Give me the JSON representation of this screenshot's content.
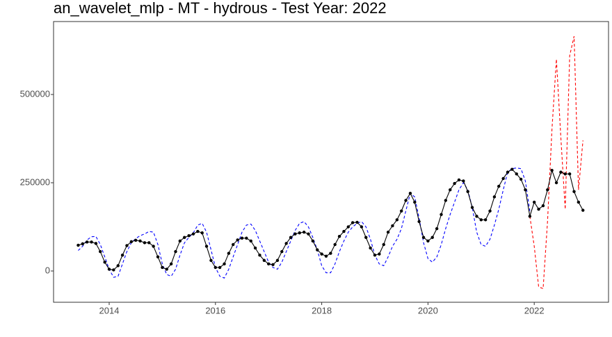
{
  "chart_data": {
    "type": "line",
    "title": "an_wavelet_mlp - MT - hydrous - Test Year: 2022",
    "x": [
      2013.417,
      2013.5,
      2013.583,
      2013.667,
      2013.75,
      2013.833,
      2013.917,
      2014,
      2014.083,
      2014.167,
      2014.25,
      2014.333,
      2014.417,
      2014.5,
      2014.583,
      2014.667,
      2014.75,
      2014.833,
      2014.917,
      2015,
      2015.083,
      2015.167,
      2015.25,
      2015.333,
      2015.417,
      2015.5,
      2015.583,
      2015.667,
      2015.75,
      2015.833,
      2015.917,
      2016,
      2016.083,
      2016.167,
      2016.25,
      2016.333,
      2016.417,
      2016.5,
      2016.583,
      2016.667,
      2016.75,
      2016.833,
      2016.917,
      2017,
      2017.083,
      2017.167,
      2017.25,
      2017.333,
      2017.417,
      2017.5,
      2017.583,
      2017.667,
      2017.75,
      2017.833,
      2017.917,
      2018,
      2018.083,
      2018.167,
      2018.25,
      2018.333,
      2018.417,
      2018.5,
      2018.583,
      2018.667,
      2018.75,
      2018.833,
      2018.917,
      2019,
      2019.083,
      2019.167,
      2019.25,
      2019.333,
      2019.417,
      2019.5,
      2019.583,
      2019.667,
      2019.75,
      2019.833,
      2019.917,
      2020,
      2020.083,
      2020.167,
      2020.25,
      2020.333,
      2020.417,
      2020.5,
      2020.583,
      2020.667,
      2020.75,
      2020.833,
      2020.917,
      2021,
      2021.083,
      2021.167,
      2021.25,
      2021.333,
      2021.417,
      2021.5,
      2021.583,
      2021.667,
      2021.75,
      2021.833,
      2021.917,
      2022,
      2022.083,
      2022.167,
      2022.25,
      2022.333,
      2022.417,
      2022.5,
      2022.583,
      2022.667,
      2022.75,
      2022.833,
      2022.917
    ],
    "series": [
      {
        "color": "#0000ff",
        "linestyle": "dashed",
        "markers": false,
        "values": [
          58000,
          70000,
          88000,
          97000,
          98000,
          75000,
          40000,
          5000,
          -18000,
          -15000,
          20000,
          55000,
          80000,
          92000,
          100000,
          105000,
          112000,
          110000,
          75000,
          20000,
          -10000,
          -15000,
          5000,
          45000,
          80000,
          95000,
          108000,
          130000,
          135000,
          110000,
          60000,
          10000,
          -15000,
          -20000,
          5000,
          40000,
          75000,
          110000,
          130000,
          133000,
          115000,
          85000,
          55000,
          25000,
          10000,
          5000,
          25000,
          55000,
          85000,
          115000,
          135000,
          140000,
          125000,
          95000,
          60000,
          15000,
          -5000,
          -5000,
          20000,
          55000,
          85000,
          110000,
          125000,
          135000,
          140000,
          125000,
          90000,
          45000,
          20000,
          15000,
          40000,
          70000,
          90000,
          120000,
          170000,
          220000,
          210000,
          150000,
          80000,
          35000,
          25000,
          40000,
          75000,
          120000,
          160000,
          195000,
          230000,
          250000,
          230000,
          180000,
          110000,
          75000,
          70000,
          90000,
          130000,
          175000,
          230000,
          280000,
          290000,
          292000,
          290000,
          255000,
          170000,
          null,
          null,
          null,
          null,
          null,
          null,
          null,
          null,
          null,
          null,
          null,
          null
        ]
      },
      {
        "color": "#ff0000",
        "linestyle": "dashed",
        "markers": false,
        "values": [
          null,
          null,
          null,
          null,
          null,
          null,
          null,
          null,
          null,
          null,
          null,
          null,
          null,
          null,
          null,
          null,
          null,
          null,
          null,
          null,
          null,
          null,
          null,
          null,
          null,
          null,
          null,
          null,
          null,
          null,
          null,
          null,
          null,
          null,
          null,
          null,
          null,
          null,
          null,
          null,
          null,
          null,
          null,
          null,
          null,
          null,
          null,
          null,
          null,
          null,
          null,
          null,
          null,
          null,
          null,
          null,
          null,
          null,
          null,
          null,
          null,
          null,
          null,
          null,
          null,
          null,
          null,
          null,
          null,
          null,
          null,
          null,
          null,
          null,
          null,
          null,
          null,
          null,
          null,
          null,
          null,
          null,
          null,
          null,
          null,
          null,
          null,
          null,
          null,
          null,
          null,
          null,
          null,
          null,
          null,
          null,
          null,
          null,
          null,
          null,
          null,
          null,
          155000,
          70000,
          -45000,
          -50000,
          140000,
          400000,
          600000,
          380000,
          175000,
          610000,
          665000,
          230000,
          370000
        ]
      },
      {
        "color": "#000000",
        "linestyle": "solid",
        "markers": true,
        "values": [
          73000,
          77000,
          82000,
          82000,
          78000,
          55000,
          25000,
          5000,
          3000,
          15000,
          45000,
          72000,
          83000,
          87000,
          85000,
          80000,
          80000,
          70000,
          40000,
          10000,
          5000,
          20000,
          55000,
          85000,
          95000,
          100000,
          105000,
          112000,
          108000,
          70000,
          30000,
          10000,
          10000,
          20000,
          50000,
          75000,
          88000,
          93000,
          93000,
          85000,
          65000,
          45000,
          30000,
          20000,
          18000,
          30000,
          55000,
          78000,
          95000,
          105000,
          108000,
          110000,
          105000,
          85000,
          60000,
          48000,
          42000,
          50000,
          75000,
          98000,
          112000,
          125000,
          137000,
          138000,
          125000,
          95000,
          65000,
          45000,
          48000,
          75000,
          110000,
          128000,
          145000,
          170000,
          200000,
          220000,
          195000,
          140000,
          95000,
          85000,
          95000,
          120000,
          160000,
          200000,
          230000,
          248000,
          258000,
          255000,
          225000,
          180000,
          155000,
          145000,
          145000,
          170000,
          210000,
          240000,
          262000,
          280000,
          288000,
          275000,
          260000,
          230000,
          155000,
          195000,
          175000,
          185000,
          230000,
          285000,
          250000,
          280000,
          275000,
          275000,
          225000,
          195000,
          172000
        ]
      }
    ],
    "xlim": [
      2012.953,
      2023.398
    ],
    "xticks": [
      2014,
      2016,
      2018,
      2020,
      2022
    ],
    "ylim": [
      -88583,
      706693
    ],
    "yticks": [
      0,
      250000,
      500000
    ],
    "grid": false
  }
}
